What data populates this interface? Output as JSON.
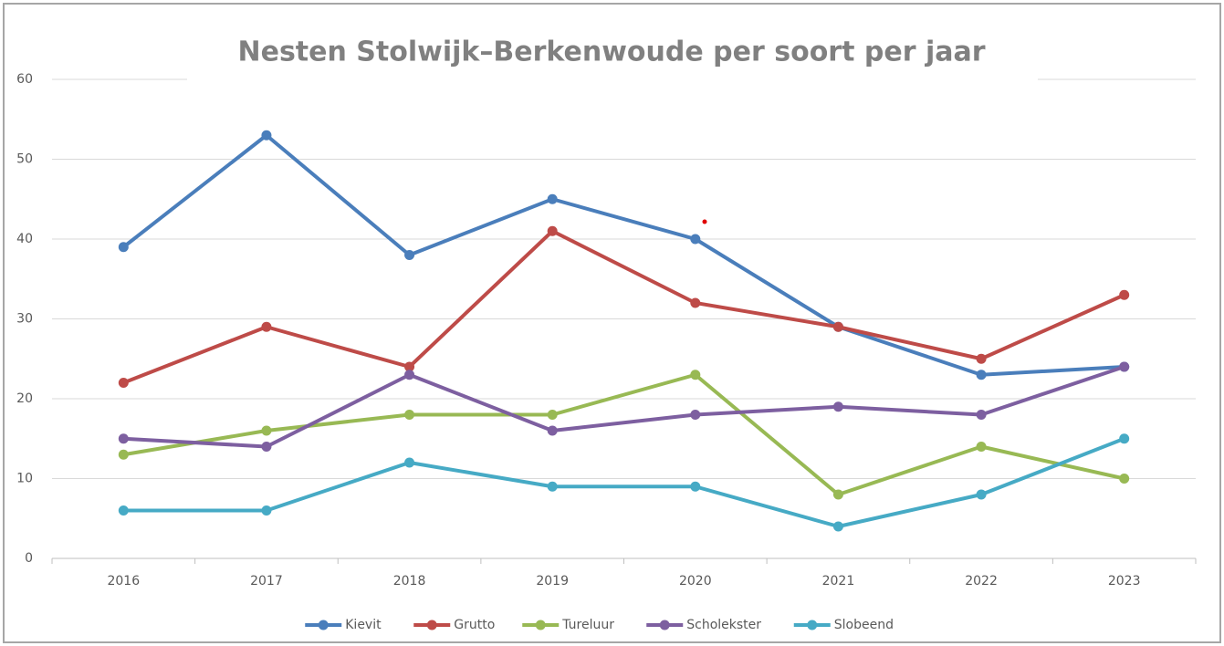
{
  "chart_data": {
    "type": "line",
    "title": "Nesten Stolwijk–Berkenwoude per soort per jaar",
    "categories": [
      "2016",
      "2017",
      "2018",
      "2019",
      "2020",
      "2021",
      "2022",
      "2023"
    ],
    "series": [
      {
        "name": "Kievit",
        "color": "#4a7ebb",
        "values": [
          39,
          53,
          38,
          45,
          40,
          29,
          23,
          24
        ]
      },
      {
        "name": "Grutto",
        "color": "#be4b48",
        "values": [
          22,
          29,
          24,
          41,
          32,
          29,
          25,
          33
        ]
      },
      {
        "name": "Tureluur",
        "color": "#98b954",
        "values": [
          13,
          16,
          18,
          18,
          23,
          8,
          14,
          10
        ]
      },
      {
        "name": "Scholekster",
        "color": "#7d5fa0",
        "values": [
          15,
          14,
          23,
          16,
          18,
          19,
          18,
          24
        ]
      },
      {
        "name": "Slobeend",
        "color": "#46aac5",
        "values": [
          6,
          6,
          12,
          9,
          9,
          4,
          8,
          15
        ]
      }
    ],
    "ylim": [
      0,
      60
    ],
    "yticks": [
      0,
      10,
      20,
      30,
      40,
      50,
      60
    ],
    "grid": true,
    "legend": "bottom"
  }
}
